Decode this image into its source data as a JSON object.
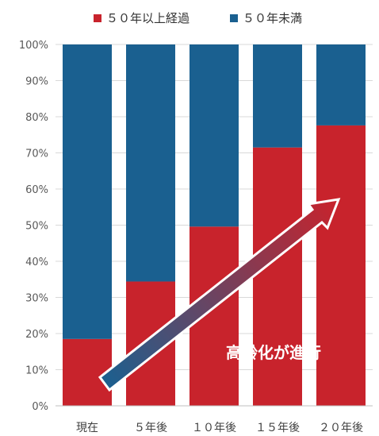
{
  "chart_data": {
    "type": "bar",
    "stacked": true,
    "categories": [
      "現在",
      "５年後",
      "１０年後",
      "１５年後",
      "２０年後"
    ],
    "series": [
      {
        "name": "５０年以上経過",
        "values": [
          18.5,
          34.4,
          49.6,
          71.5,
          77.6
        ],
        "color": "#c8232c"
      },
      {
        "name": "５０年未満",
        "values": [
          81.5,
          65.6,
          50.4,
          28.5,
          22.4
        ],
        "color": "#1a6090"
      }
    ],
    "ylim": [
      0,
      100
    ],
    "yticks": [
      "0%",
      "10%",
      "20%",
      "30%",
      "40%",
      "50%",
      "60%",
      "70%",
      "80%",
      "90%",
      "100%"
    ],
    "grid": "horizontal",
    "legend": "top",
    "annotation": {
      "text": "高齢化が進行"
    }
  }
}
